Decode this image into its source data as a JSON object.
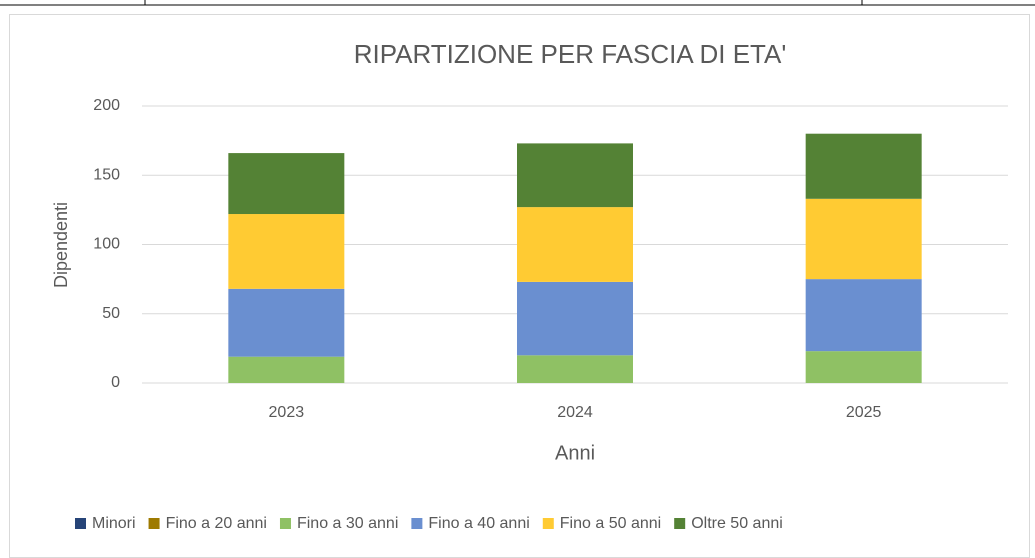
{
  "chart_data": {
    "type": "stacked_bar",
    "title": "RIPARTIZIONE PER FASCIA DI ETA'",
    "x_label": "Anni",
    "y_label": "Dipendenti",
    "categories": [
      "2023",
      "2024",
      "2025"
    ],
    "series": [
      {
        "name": "Minori",
        "color": "#264478",
        "values": [
          0,
          0,
          0
        ]
      },
      {
        "name": "Fino a 20 anni",
        "color": "#9e7a00",
        "values": [
          0,
          0,
          0
        ]
      },
      {
        "name": "Fino a 30 anni",
        "color": "#8fc164",
        "values": [
          19,
          20,
          23
        ]
      },
      {
        "name": "Fino a 40 anni",
        "color": "#6a8fd0",
        "values": [
          49,
          53,
          52
        ]
      },
      {
        "name": "Fino a 50 anni",
        "color": "#ffcb33",
        "values": [
          54,
          54,
          58
        ]
      },
      {
        "name": "Oltre 50 anni",
        "color": "#548235",
        "values": [
          44,
          46,
          47
        ]
      }
    ],
    "ylim": [
      0,
      200
    ],
    "yticks": [
      0,
      50,
      100,
      150,
      200
    ],
    "grid": true,
    "legend": "bottom"
  }
}
